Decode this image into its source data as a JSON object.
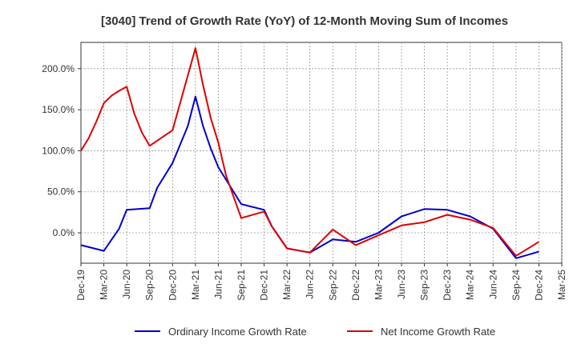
{
  "chart_data": {
    "type": "line",
    "title": "[3040]  Trend of Growth Rate (YoY) of 12-Month Moving Sum of Incomes",
    "xlabel": "",
    "ylabel": "",
    "x_tick_labels": [
      "Dec-19",
      "Mar-20",
      "Jun-20",
      "Sep-20",
      "Dec-20",
      "Mar-21",
      "Jun-21",
      "Sep-21",
      "Dec-21",
      "Mar-22",
      "Jun-22",
      "Sep-22",
      "Dec-22",
      "Mar-23",
      "Jun-23",
      "Sep-23",
      "Dec-23",
      "Mar-24",
      "Jun-24",
      "Sep-24",
      "Dec-24",
      "Mar-25"
    ],
    "y_ticks": [
      0,
      50,
      100,
      150,
      200
    ],
    "y_tick_labels": [
      "0.0%",
      "50.0%",
      "100.0%",
      "150.0%",
      "200.0%"
    ],
    "ylim": [
      -37,
      232
    ],
    "grid": true,
    "legend_position": "bottom",
    "series": [
      {
        "name": "Ordinary Income Growth Rate",
        "color": "#0000cc",
        "points": [
          [
            0,
            -15
          ],
          [
            3,
            -22
          ],
          [
            5,
            5
          ],
          [
            6,
            28
          ],
          [
            9,
            30
          ],
          [
            10,
            55
          ],
          [
            12,
            85
          ],
          [
            14,
            130
          ],
          [
            15,
            166
          ],
          [
            16,
            130
          ],
          [
            17,
            103
          ],
          [
            18,
            80
          ],
          [
            21,
            35
          ],
          [
            24,
            28
          ],
          [
            25,
            8
          ],
          [
            27,
            -19
          ],
          [
            30,
            -24
          ],
          [
            33,
            -8
          ],
          [
            36,
            -11
          ],
          [
            39,
            0
          ],
          [
            42,
            20
          ],
          [
            45,
            29
          ],
          [
            48,
            28
          ],
          [
            51,
            20
          ],
          [
            54,
            5
          ],
          [
            57,
            -31
          ],
          [
            60,
            -23
          ]
        ]
      },
      {
        "name": "Net Income Growth Rate",
        "color": "#dd0000",
        "points": [
          [
            0,
            100
          ],
          [
            1,
            115
          ],
          [
            2,
            135
          ],
          [
            3,
            158
          ],
          [
            4,
            167
          ],
          [
            5,
            173
          ],
          [
            6,
            178
          ],
          [
            7,
            145
          ],
          [
            8,
            122
          ],
          [
            9,
            106
          ],
          [
            12,
            125
          ],
          [
            15,
            225
          ],
          [
            16,
            180
          ],
          [
            17,
            140
          ],
          [
            18,
            110
          ],
          [
            19,
            70
          ],
          [
            21,
            18
          ],
          [
            24,
            26
          ],
          [
            25,
            8
          ],
          [
            27,
            -19
          ],
          [
            30,
            -24
          ],
          [
            33,
            4
          ],
          [
            36,
            -15
          ],
          [
            39,
            -3
          ],
          [
            42,
            9
          ],
          [
            45,
            13
          ],
          [
            48,
            22
          ],
          [
            51,
            16
          ],
          [
            54,
            6
          ],
          [
            57,
            -28
          ],
          [
            60,
            -11
          ]
        ]
      }
    ]
  }
}
